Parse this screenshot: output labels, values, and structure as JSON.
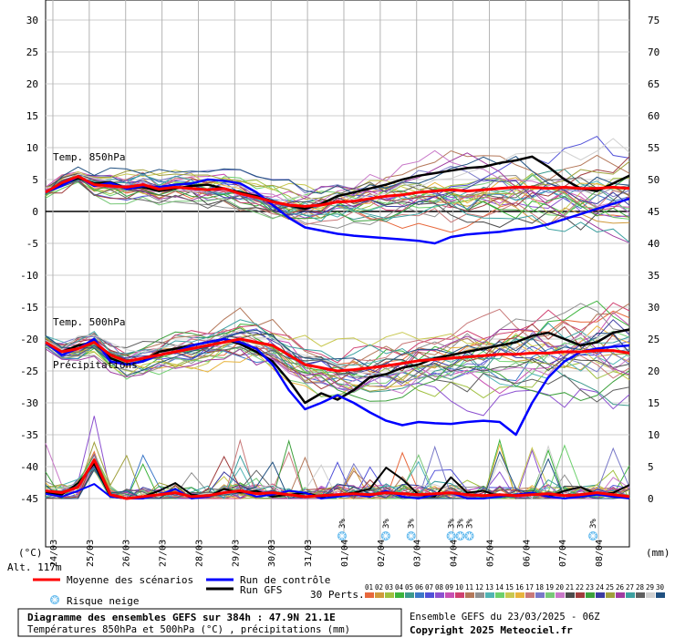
{
  "chart_data": {
    "type": "line",
    "title": "Diagramme des ensembles GEFS sur 384h : 47.9N 21.1E",
    "subtitle": "Températures 850hPa et 500hPa (°C) , précipitations (mm)",
    "run_info": "Ensemble GEFS du 23/03/2025 - 06Z",
    "copyright": "Copyright 2025 Meteociel.fr",
    "altitude": "Alt. 117m",
    "left_unit": "(°C)",
    "right_unit": "(mm)",
    "left_ticks": [
      "30",
      "25",
      "20",
      "15",
      "10",
      "5",
      "0",
      "-5",
      "-10",
      "-15",
      "-20",
      "-25",
      "-30",
      "-35",
      "-40",
      "-45"
    ],
    "right_ticks": [
      "75",
      "70",
      "65",
      "60",
      "55",
      "50",
      "45",
      "40",
      "35",
      "30",
      "25",
      "20",
      "15",
      "10",
      "5",
      "0"
    ],
    "ylim_temp": [
      -45,
      30
    ],
    "dates": [
      "24/03",
      "25/03",
      "26/03",
      "27/03",
      "28/03",
      "29/03",
      "30/03",
      "31/03",
      "01/04",
      "02/04",
      "03/04",
      "04/04",
      "05/04",
      "06/04",
      "07/04",
      "08/04"
    ],
    "section_labels": {
      "t850": "Temp. 850hPa",
      "t500": "Temp. 500hPa",
      "precip": "Précipitations"
    },
    "legend": {
      "mean": "Moyenne des scénarios",
      "control": "Run de contrôle",
      "gfs": "Run GFS",
      "snow": "Risque neige",
      "perts": "30 Perts.",
      "pert_numbers": [
        "01",
        "02",
        "03",
        "04",
        "05",
        "06",
        "07",
        "08",
        "09",
        "10",
        "11",
        "12",
        "13",
        "14",
        "15",
        "16",
        "17",
        "18",
        "19",
        "20",
        "21",
        "22",
        "23",
        "24",
        "25",
        "26",
        "27",
        "28",
        "29",
        "30"
      ],
      "pert_colors": [
        "#e8683c",
        "#d09a3c",
        "#a0c040",
        "#3cb43c",
        "#3c9a8c",
        "#3c78c8",
        "#5050d8",
        "#8c50d0",
        "#c850b4",
        "#d04070",
        "#b4785a",
        "#909090",
        "#50b4b4",
        "#6cd06c",
        "#c8c850",
        "#e8b43c",
        "#c87878",
        "#7878c8",
        "#78c878",
        "#c878c8",
        "#4c4c4c",
        "#a03c3c",
        "#3ca03c",
        "#3c3ca0",
        "#a0a03c",
        "#a03ca0",
        "#3ca0a0",
        "#606060",
        "#d0d0d0",
        "#205080"
      ]
    },
    "snow_flags": [
      {
        "day": 8.2,
        "label": "3%"
      },
      {
        "day": 9.4,
        "label": "3%"
      },
      {
        "day": 10.1,
        "label": "3%"
      },
      {
        "day": 11.2,
        "label": "3%"
      },
      {
        "day": 11.45,
        "label": "3%"
      },
      {
        "day": 11.7,
        "label": "3%"
      },
      {
        "day": 15.1,
        "label": "3%"
      }
    ],
    "series": {
      "mean_t850": [
        3,
        4.5,
        5.5,
        4.2,
        4,
        3.8,
        4.2,
        3.5,
        3.8,
        3.6,
        3.4,
        3.6,
        2.8,
        2.2,
        1.5,
        1,
        0.8,
        1,
        1.5,
        1.6,
        2,
        2.4,
        2.6,
        3,
        3.2,
        3.4,
        3.2,
        3.4,
        3.6,
        3.8,
        3.8,
        3.6,
        3.8,
        3.6,
        3.6,
        3.8,
        3.6
      ],
      "control_t850": [
        3,
        4,
        5.5,
        4,
        4.5,
        3.5,
        4,
        3.8,
        4.2,
        4.4,
        5,
        4.8,
        4.4,
        3,
        1,
        -1,
        -2.5,
        -3,
        -3.5,
        -3.8,
        -4,
        -4.2,
        -4.4,
        -4.6,
        -5,
        -4,
        -3.6,
        -3.4,
        -3.2,
        -2.8,
        -2.6,
        -2,
        -1.2,
        -0.4,
        0.4,
        1.2,
        2
      ],
      "gfs_t850": [
        3,
        4.2,
        5.2,
        4.4,
        4.6,
        3.6,
        3.8,
        3.2,
        3.6,
        4,
        4.2,
        3.6,
        3,
        2.4,
        1.6,
        1,
        0.4,
        1.2,
        2.4,
        3,
        3.6,
        4.2,
        5,
        5.6,
        6,
        6.4,
        6.8,
        7,
        7.6,
        8,
        8.6,
        7,
        5,
        3.6,
        3.2,
        4.4,
        5.6
      ],
      "mean_t500": [
        -20.5,
        -22,
        -21.5,
        -20.5,
        -22.5,
        -23.5,
        -23,
        -22.5,
        -22,
        -21.5,
        -21,
        -20.5,
        -20,
        -20.5,
        -21,
        -22.5,
        -24,
        -24.5,
        -25,
        -24.8,
        -24.5,
        -24.2,
        -23.8,
        -23.4,
        -23.2,
        -23,
        -22.8,
        -22.6,
        -22.4,
        -22.4,
        -22.2,
        -22.2,
        -22,
        -22,
        -21.8,
        -21.8,
        -22.2
      ],
      "control_t500": [
        -20.5,
        -22.5,
        -21.5,
        -20,
        -23.5,
        -24,
        -23.5,
        -22.5,
        -22,
        -21,
        -20.5,
        -20,
        -20.5,
        -21.5,
        -24,
        -28,
        -31,
        -30,
        -28.8,
        -30,
        -31.5,
        -32.8,
        -33.5,
        -33,
        -33.2,
        -33.3,
        -33,
        -32.8,
        -33,
        -35,
        -30,
        -26,
        -23.5,
        -22,
        -21.5,
        -21.2,
        -21
      ],
      "gfs_t500": [
        -20.5,
        -22,
        -21,
        -20.5,
        -23,
        -24,
        -23.5,
        -22,
        -21.5,
        -21,
        -20.5,
        -20,
        -20.8,
        -22,
        -23.5,
        -26.5,
        -30,
        -28.5,
        -29.5,
        -28,
        -26,
        -25.5,
        -24.5,
        -24,
        -23,
        -22.5,
        -22,
        -21.5,
        -21,
        -20.5,
        -19.5,
        -19,
        -20,
        -21,
        -20.5,
        -19,
        -18.5
      ],
      "mean_precip": [
        0.8,
        0.6,
        1.2,
        4,
        0.4,
        0,
        0.2,
        0.4,
        0.6,
        0.2,
        0.3,
        0.6,
        0.8,
        0.5,
        0.6,
        0.4,
        0.2,
        0.3,
        0.4,
        0.5,
        0.4,
        0.6,
        0.5,
        0.4,
        0.5,
        0.6,
        0.4,
        0.3,
        0.4,
        0.3,
        0.4,
        0.5,
        0.3,
        0.4,
        0.6,
        0.4,
        0.2
      ],
      "control_precip": [
        0.5,
        0.2,
        0.8,
        1.5,
        0.2,
        0,
        0,
        0.4,
        1,
        0,
        0.2,
        0.6,
        0.8,
        0.2,
        0.4,
        0.8,
        0.6,
        0,
        0.2,
        0.4,
        0.2,
        0.8,
        0.2,
        0,
        0.4,
        0.6,
        0,
        0,
        0.2,
        0.4,
        0.6,
        0.2,
        0,
        0.2,
        0.4,
        0.2,
        0
      ],
      "gfs_precip": [
        0.6,
        0.4,
        1.6,
        3.6,
        0.2,
        0,
        0.2,
        0.8,
        1.6,
        0.4,
        0.2,
        1,
        0.6,
        0.8,
        0.2,
        0.4,
        0.6,
        0.2,
        0.4,
        0.6,
        1,
        3.2,
        2,
        0.4,
        0.2,
        2.2,
        0.6,
        0.8,
        0.2,
        0.4,
        0.6,
        0.2,
        0.8,
        1.2,
        0.4,
        0.6,
        1.4
      ]
    }
  }
}
